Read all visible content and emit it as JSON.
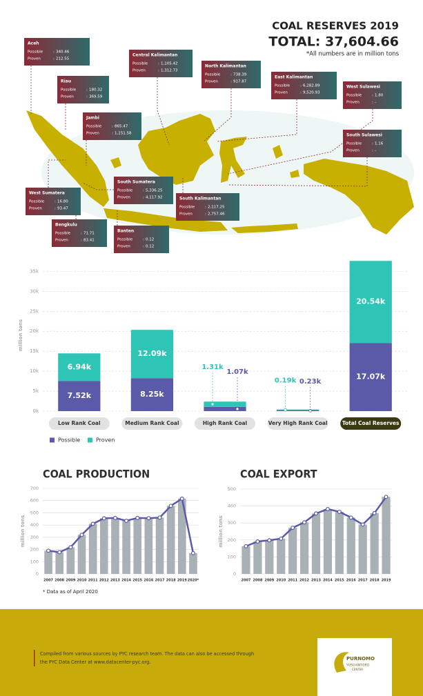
{
  "header": {
    "title": "COAL RESERVES 2019",
    "total": "TOTAL: 37,604.66",
    "note": "*All numbers are in million tons"
  },
  "map": {
    "row_labels": [
      "Possible",
      "Proven"
    ],
    "separator": ":",
    "regions": [
      {
        "name": "Aceh",
        "possible": "340.46",
        "proven": "212.55"
      },
      {
        "name": "Riau",
        "possible": "180.32",
        "proven": "369.59"
      },
      {
        "name": "Jambi",
        "possible": "865.47",
        "proven": "1,151.58"
      },
      {
        "name": "Central Kalimantan",
        "possible": "1,105.42",
        "proven": "1,312.73"
      },
      {
        "name": "North Kalimantan",
        "possible": "738.39",
        "proven": "917.87"
      },
      {
        "name": "East Kalimantan",
        "possible": "6,282.89",
        "proven": "9,520.93"
      },
      {
        "name": "West Sulawesi",
        "possible": "1.80",
        "proven": "-"
      },
      {
        "name": "South Sulawesi",
        "possible": "1.16",
        "proven": "-"
      },
      {
        "name": "West Sumatera",
        "possible": "16.80",
        "proven": "93.47"
      },
      {
        "name": "South Sumatera",
        "possible": "5,336.25",
        "proven": "4,117.92"
      },
      {
        "name": "South Kalimantan",
        "possible": "2,117.25",
        "proven": "2,757.46"
      },
      {
        "name": "Bengkulu",
        "possible": "71.71",
        "proven": "83.41"
      },
      {
        "name": "Banten",
        "possible": "0.12",
        "proven": "0.12"
      }
    ]
  },
  "chart_data": [
    {
      "type": "bar",
      "stacked": true,
      "ylabel": "million tons",
      "categories": [
        "Low Rank Coal",
        "Medium Rank Coal",
        "High Rank Coal",
        "Very High Rank Coal",
        "Total Coal Reserves"
      ],
      "series": [
        {
          "name": "Possible",
          "color": "#5b5aa8",
          "values": [
            7520,
            8250,
            1070,
            230,
            17070
          ],
          "value_labels": [
            "7.52k",
            "8.25k",
            "1.07k",
            "0.23k",
            "17.07k"
          ]
        },
        {
          "name": "Proven",
          "color": "#2ec4b6",
          "values": [
            6940,
            12090,
            1310,
            190,
            20540
          ],
          "value_labels": [
            "6.94k",
            "12.09k",
            "1.31k",
            "0.19k",
            "20.54k"
          ]
        }
      ],
      "ylim": [
        0,
        38000
      ],
      "yticks": [
        {
          "value": 0,
          "label": "0k"
        },
        {
          "value": 5000,
          "label": "5k"
        },
        {
          "value": 10000,
          "label": "10k"
        },
        {
          "value": 15000,
          "label": "15k"
        },
        {
          "value": 20000,
          "label": "20k"
        },
        {
          "value": 25000,
          "label": "25k"
        },
        {
          "value": 30000,
          "label": "30k"
        },
        {
          "value": 35000,
          "label": "35k"
        }
      ],
      "grid": true,
      "legend": "bottom-left"
    },
    {
      "type": "bar",
      "title": "COAL PRODUCTION",
      "ylabel": "million tons",
      "categories": [
        "2007",
        "2008",
        "2009",
        "2010",
        "2011",
        "2012",
        "2013",
        "2014",
        "2015",
        "2016",
        "2017",
        "2018",
        "2019",
        "2020*"
      ],
      "values": [
        190,
        178,
        218,
        320,
        410,
        455,
        458,
        435,
        458,
        456,
        461,
        557,
        616,
        170
      ],
      "color": "#a8b1b4",
      "line_color": "#5b5aa8",
      "ylim": [
        0,
        700
      ],
      "yticks": [
        0,
        100,
        200,
        300,
        400,
        500,
        600,
        700
      ],
      "grid": true,
      "note": "* Data as of April 2020"
    },
    {
      "type": "bar",
      "title": "COAL EXPORT",
      "ylabel": "million tons",
      "categories": [
        "2007",
        "2008",
        "2009",
        "2010",
        "2011",
        "2012",
        "2013",
        "2014",
        "2015",
        "2016",
        "2017",
        "2018",
        "2019"
      ],
      "values": [
        163,
        191,
        198,
        208,
        272,
        304,
        356,
        382,
        366,
        332,
        291,
        358,
        454
      ],
      "color": "#a8b1b4",
      "line_color": "#5b5aa8",
      "ylim": [
        0,
        500
      ],
      "yticks": [
        0,
        100,
        200,
        300,
        400,
        500
      ],
      "grid": true
    }
  ],
  "footer": {
    "lines": [
      "Compiled from various sources by PYC research team. The data can also be accessed through",
      "the PYC Data Center at www.datacenter-pyc.org."
    ],
    "logo": [
      "PURNOMO",
      "YUSGIANTORO",
      "CENTER"
    ]
  }
}
